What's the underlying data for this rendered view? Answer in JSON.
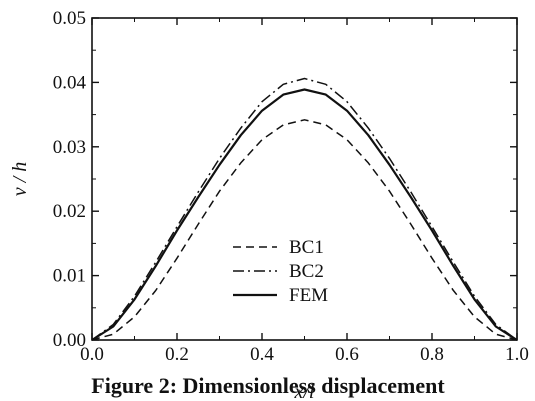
{
  "caption": "Figure 2: Dimensionless displacement",
  "chart_data": {
    "type": "line",
    "xlabel": "x/l",
    "ylabel": "v / h",
    "xlim": [
      0.0,
      1.0
    ],
    "ylim": [
      0.0,
      0.05
    ],
    "x_ticks": [
      "0.0",
      "0.2",
      "0.4",
      "0.6",
      "0.8",
      "1.0"
    ],
    "y_ticks": [
      "0.00",
      "0.01",
      "0.02",
      "0.03",
      "0.04",
      "0.05"
    ],
    "grid": false,
    "legend_position": "lower-center",
    "x": [
      0.0,
      0.05,
      0.1,
      0.15,
      0.2,
      0.25,
      0.3,
      0.35,
      0.4,
      0.45,
      0.5,
      0.55,
      0.6,
      0.65,
      0.7,
      0.75,
      0.8,
      0.85,
      0.9,
      0.95,
      1.0
    ],
    "series": [
      {
        "name": "BC1",
        "style": "dashed",
        "values": [
          0.0,
          0.0009,
          0.0036,
          0.0077,
          0.0127,
          0.018,
          0.0231,
          0.0275,
          0.0311,
          0.0334,
          0.0342,
          0.0334,
          0.0311,
          0.0275,
          0.0231,
          0.018,
          0.0127,
          0.0077,
          0.0036,
          0.0009,
          0.0
        ]
      },
      {
        "name": "BC2",
        "style": "dashdot",
        "values": [
          0.0,
          0.0024,
          0.0068,
          0.0121,
          0.0176,
          0.023,
          0.0282,
          0.0329,
          0.037,
          0.0397,
          0.0406,
          0.0397,
          0.037,
          0.0329,
          0.0282,
          0.023,
          0.0176,
          0.0121,
          0.0068,
          0.0024,
          0.0
        ]
      },
      {
        "name": "FEM",
        "style": "solid",
        "values": [
          0.0,
          0.0021,
          0.0063,
          0.0115,
          0.017,
          0.0222,
          0.0272,
          0.0318,
          0.0356,
          0.0381,
          0.0389,
          0.0381,
          0.0356,
          0.0318,
          0.0272,
          0.0222,
          0.017,
          0.0115,
          0.0063,
          0.0021,
          0.0
        ]
      }
    ]
  }
}
